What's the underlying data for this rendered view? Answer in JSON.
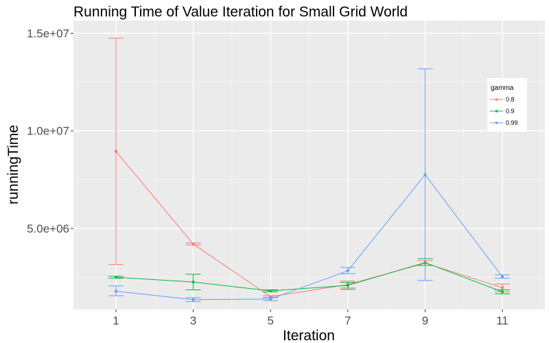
{
  "chart_data": {
    "type": "line",
    "title": "Running Time of Value Iteration for Small Grid World",
    "xlabel": "Iteration",
    "ylabel": "runningTime",
    "x": [
      1,
      3,
      5,
      7,
      9,
      11
    ],
    "xlim": [
      -0.1,
      12.1
    ],
    "ylim": [
      850000,
      15650000
    ],
    "y_ticks": [
      5000000,
      10000000,
      15000000
    ],
    "y_tick_labels": [
      "5.0e+06",
      "1.0e+07",
      "1.5e+07"
    ],
    "x_ticks": [
      1,
      3,
      5,
      7,
      9,
      11
    ],
    "x_tick_labels": [
      "1",
      "3",
      "5",
      "7",
      "9",
      "11"
    ],
    "grid": true,
    "legend": {
      "title": "gamma",
      "position": "right"
    },
    "series": [
      {
        "name": "0.8",
        "color": "#F8766D",
        "values": [
          8950000,
          4200000,
          1500000,
          2120000,
          3220000,
          1960000
        ],
        "lower": [
          3150000,
          4150000,
          1450000,
          1950000,
          3100000,
          1750000
        ],
        "upper": [
          14750000,
          4250000,
          1550000,
          2300000,
          3350000,
          2150000
        ]
      },
      {
        "name": "0.9",
        "color": "#00BA38",
        "values": [
          2500000,
          2250000,
          1800000,
          2080000,
          3250000,
          1750000
        ],
        "lower": [
          2450000,
          1850000,
          1750000,
          1880000,
          3100000,
          1650000
        ],
        "upper": [
          2550000,
          2650000,
          1850000,
          2230000,
          3450000,
          1850000
        ]
      },
      {
        "name": "0.99",
        "color": "#619CFF",
        "values": [
          1780000,
          1350000,
          1380000,
          2830000,
          7750000,
          2520000
        ],
        "lower": [
          1550000,
          1250000,
          1300000,
          2680000,
          2330000,
          2450000
        ],
        "upper": [
          2050000,
          1450000,
          1460000,
          3000000,
          13180000,
          2620000
        ]
      }
    ]
  }
}
